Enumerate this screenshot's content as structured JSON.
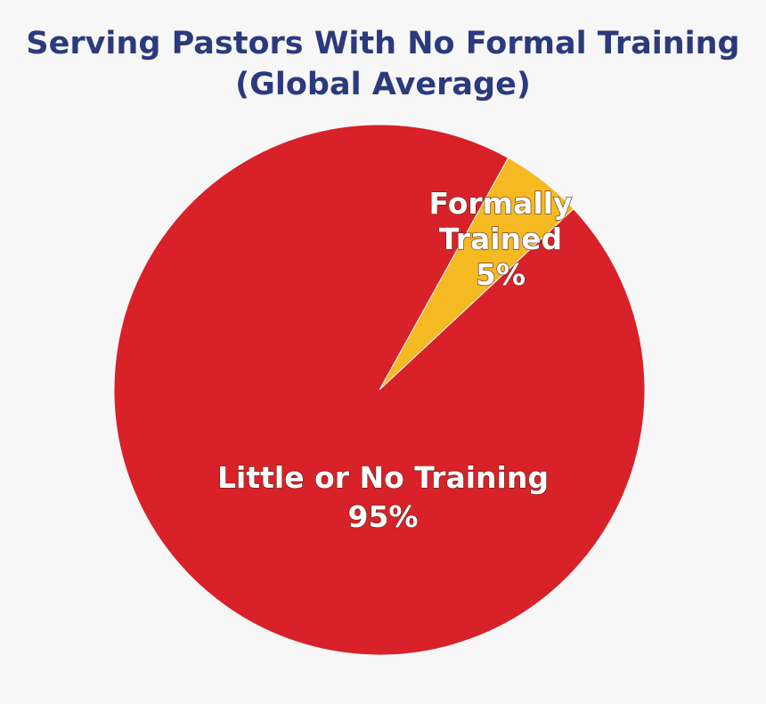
{
  "chart_data": {
    "type": "pie",
    "title": "Serving Pastors With No Formal Training",
    "subtitle": "(Global Average)",
    "categories": [
      "Formally Trained",
      "Little or No Training"
    ],
    "values": [
      5,
      95
    ],
    "value_labels": [
      "5%",
      "95%"
    ],
    "colors": [
      "#f5b921",
      "#d82128"
    ]
  }
}
